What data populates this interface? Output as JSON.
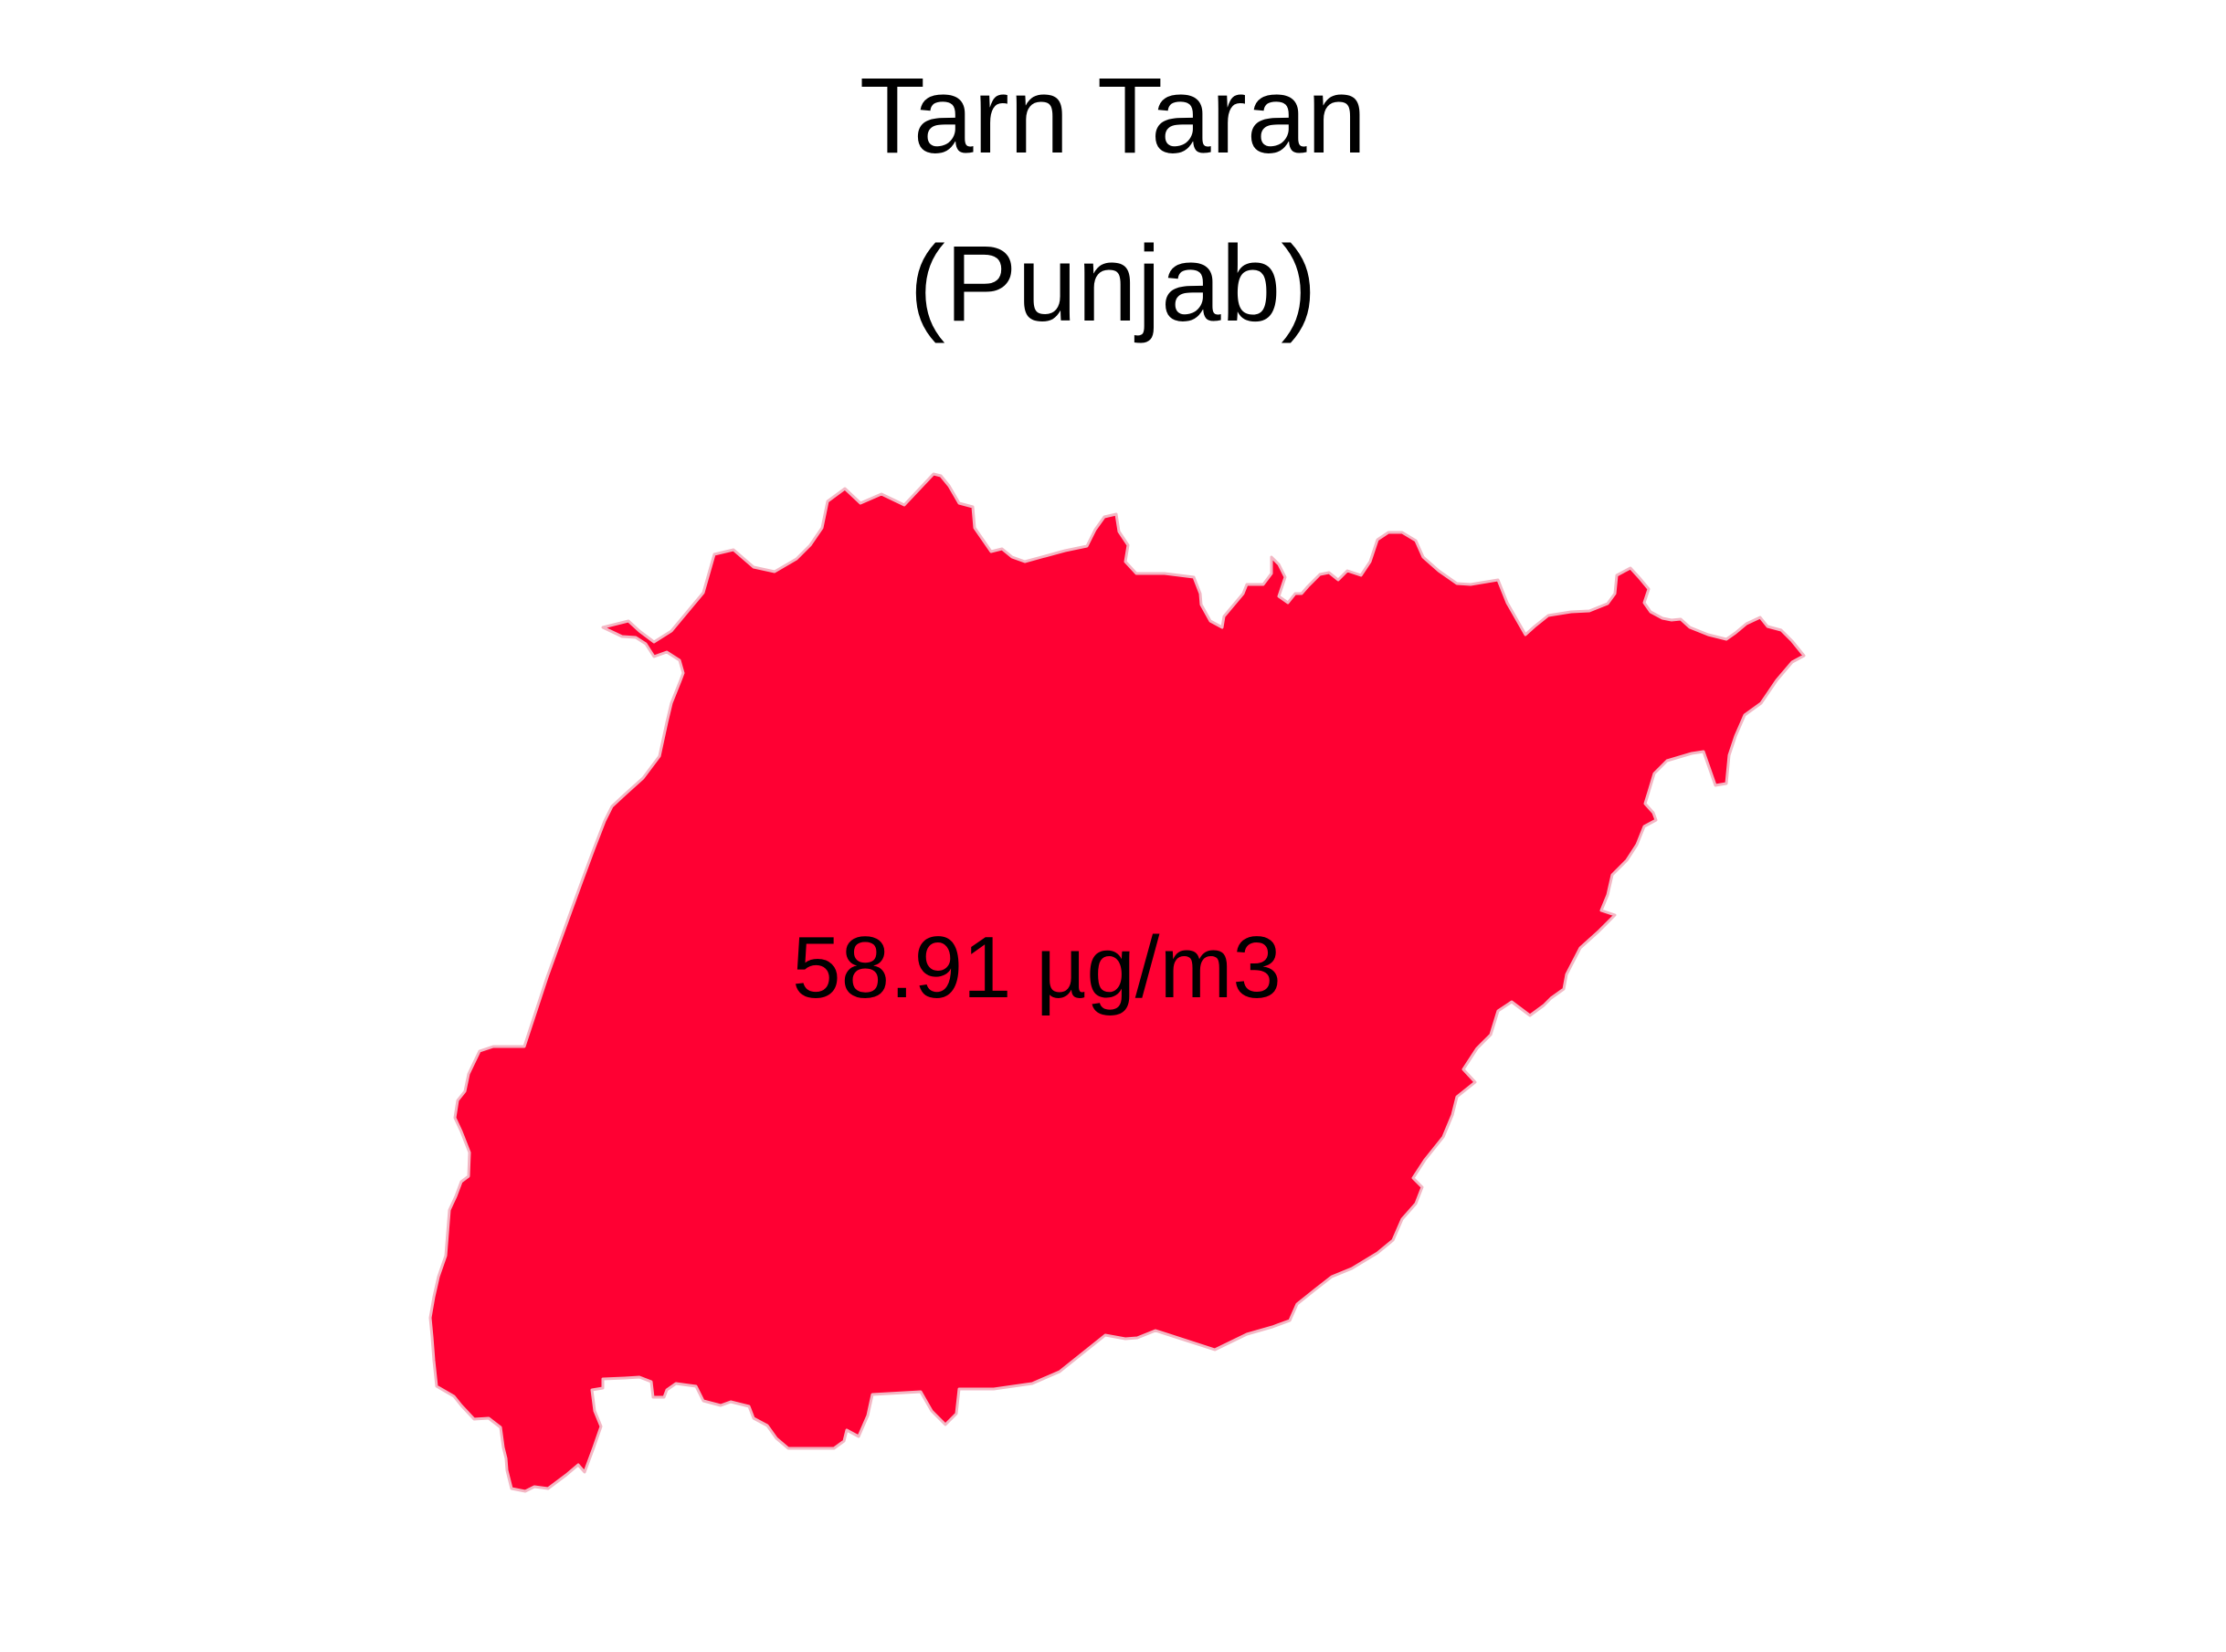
{
  "map": {
    "title": "Tarn Taran",
    "subtitle": "(Punjab)",
    "value_label": "58.91 µg/m3",
    "region_fill_color": "#FF0033",
    "region_border_color": "#F3B7C4"
  }
}
